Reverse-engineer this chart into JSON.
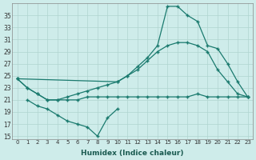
{
  "xlabel": "Humidex (Indice chaleur)",
  "background_color": "#ceecea",
  "grid_color": "#b0d4d0",
  "line_color": "#1a7a6e",
  "xlim": [
    -0.5,
    23.5
  ],
  "ylim": [
    14.5,
    37
  ],
  "yticks": [
    15,
    17,
    19,
    21,
    23,
    25,
    27,
    29,
    31,
    33,
    35
  ],
  "xtick_labels": [
    "0",
    "1",
    "2",
    "3",
    "4",
    "5",
    "6",
    "7",
    "8",
    "9",
    "10",
    "11",
    "12",
    "13",
    "14",
    "15",
    "16",
    "17",
    "18",
    "19",
    "20",
    "21",
    "22",
    "23"
  ],
  "series1_x": [
    0,
    1,
    2,
    3,
    4,
    5,
    6,
    7,
    8,
    9,
    10,
    11,
    12,
    13,
    14,
    15,
    16,
    17,
    18,
    19,
    20,
    21,
    22,
    23
  ],
  "series1_y": [
    24.5,
    23,
    22,
    21,
    21,
    21,
    21,
    21.5,
    21.5,
    21.5,
    21.5,
    21.5,
    21.5,
    21.5,
    21.5,
    21.5,
    21.5,
    21.5,
    22,
    21.5,
    21.5,
    21.5,
    21.5,
    21.5
  ],
  "series2_x": [
    0,
    1,
    2,
    3,
    4,
    5,
    6,
    7,
    8,
    9,
    10,
    11,
    12,
    13,
    14,
    15,
    16,
    17,
    18,
    19,
    20,
    21,
    22,
    23
  ],
  "series2_y": [
    24.5,
    23,
    22,
    21,
    21,
    21.5,
    22,
    22.5,
    23,
    23.5,
    24,
    25,
    26,
    27.5,
    29,
    30,
    30.5,
    30.5,
    30,
    29,
    26,
    24,
    22,
    21.5
  ],
  "series3_x": [
    0,
    10,
    11,
    12,
    13,
    14,
    15,
    16,
    17,
    18,
    19,
    20,
    21,
    22,
    23
  ],
  "series3_y": [
    24.5,
    24,
    25,
    26.5,
    28,
    30,
    36.5,
    36.5,
    35,
    34,
    30,
    29.5,
    27,
    24,
    21.5
  ],
  "series4_x": [
    1,
    2,
    3,
    4,
    5,
    6,
    7,
    8,
    9,
    10
  ],
  "series4_y": [
    21,
    20,
    19.5,
    18.5,
    17.5,
    17,
    16.5,
    15,
    18,
    19.5
  ]
}
